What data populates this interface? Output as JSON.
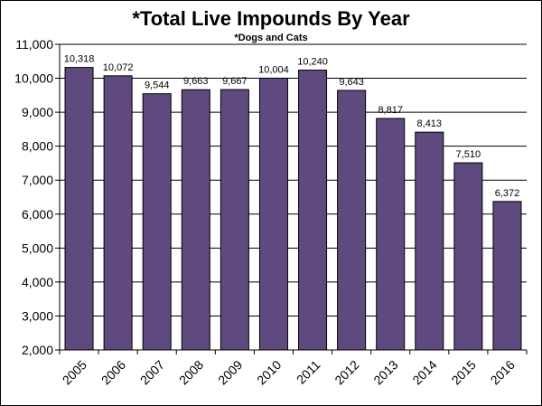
{
  "chart_data": {
    "type": "bar",
    "title": "*Total Live Impounds By Year",
    "subtitle": "*Dogs and Cats",
    "xlabel": "",
    "ylabel": "",
    "categories": [
      "2005",
      "2006",
      "2007",
      "2008",
      "2009",
      "2010",
      "2011",
      "2012",
      "2013",
      "2014",
      "2015",
      "2016"
    ],
    "values": [
      10318,
      10072,
      9544,
      9663,
      9667,
      10004,
      10240,
      9643,
      8817,
      8413,
      7510,
      6372
    ],
    "value_labels": [
      "10,318",
      "10,072",
      "9,544",
      "9,663",
      "9,667",
      "10,004",
      "10,240",
      "9,643",
      "8,817",
      "8,413",
      "7,510",
      "6,372"
    ],
    "ylim": [
      2000,
      11000
    ],
    "yticks": [
      2000,
      3000,
      4000,
      5000,
      6000,
      7000,
      8000,
      9000,
      10000,
      11000
    ],
    "ytick_labels": [
      "2,000",
      "3,000",
      "4,000",
      "5,000",
      "6,000",
      "7,000",
      "8,000",
      "9,000",
      "10,000",
      "11,000"
    ],
    "grid": true,
    "legend": "none",
    "colors": {
      "bar_fill": "#5e4a7e",
      "bar_stroke": "#000000",
      "grid": "#000000"
    }
  }
}
